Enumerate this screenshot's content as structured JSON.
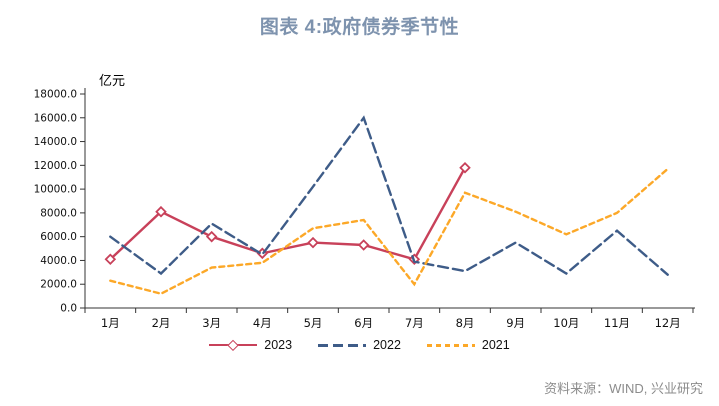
{
  "title": "图表 4:政府债券季节性",
  "source": "资料来源：WIND, 兴业研究",
  "colors": {
    "title_text": "#7E93AE",
    "source_text": "#8C8C8C",
    "axis": "#333333",
    "series_2023": "#C8415A",
    "series_2022": "#3E5C88",
    "series_2021": "#FCA828"
  },
  "chart_data": {
    "type": "line",
    "title": "图表 4:政府债券季节性",
    "ylabel": "亿元",
    "xlabel": "",
    "ylim": [
      0,
      18000
    ],
    "ytick_step": 2000,
    "yticks": [
      "0.0",
      "2000.0",
      "4000.0",
      "6000.0",
      "8000.0",
      "10000.0",
      "12000.0",
      "14000.0",
      "16000.0",
      "18000.0"
    ],
    "categories": [
      "1月",
      "2月",
      "3月",
      "4月",
      "5月",
      "6月",
      "7月",
      "8月",
      "9月",
      "10月",
      "11月",
      "12月"
    ],
    "grid": false,
    "legend_position": "bottom",
    "series": [
      {
        "name": "2023",
        "color": "#C8415A",
        "style": "solid",
        "marker": "diamond",
        "values": [
          4100,
          8100,
          6000,
          4600,
          5500,
          5300,
          4100,
          11800,
          null,
          null,
          null,
          null
        ]
      },
      {
        "name": "2022",
        "color": "#3E5C88",
        "style": "dashed",
        "marker": "none",
        "values": [
          6000,
          2900,
          7100,
          4500,
          10200,
          16000,
          3900,
          3100,
          5500,
          2900,
          6500,
          2800
        ]
      },
      {
        "name": "2021",
        "color": "#FCA828",
        "style": "short-dash",
        "marker": "none",
        "values": [
          2300,
          1200,
          3400,
          3800,
          6700,
          7400,
          2000,
          9700,
          8100,
          6200,
          8000,
          11700
        ]
      }
    ]
  }
}
